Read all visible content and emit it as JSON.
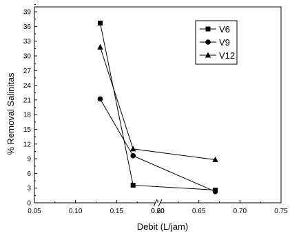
{
  "chart_data": {
    "type": "line",
    "xlabel": "Debit (L/jam)",
    "ylabel": "% Removal Salinitas",
    "ylim": [
      0,
      40
    ],
    "axis_break": {
      "from": 0.2,
      "to": 0.6
    },
    "x_ticks": [
      "0.05",
      "0.10",
      "0.15",
      "0.20",
      "0.60",
      "0.65",
      "0.70",
      "0.75"
    ],
    "y_ticks": [
      "0",
      "3",
      "6",
      "9",
      "12",
      "15",
      "18",
      "21",
      "24",
      "27",
      "30",
      "33",
      "36",
      "39"
    ],
    "legend_position": "top-right",
    "series": [
      {
        "name": "V6",
        "marker": "square",
        "x": [
          0.13,
          0.17,
          0.67
        ],
        "y": [
          36.7,
          3.6,
          2.6
        ]
      },
      {
        "name": "V9",
        "marker": "circle",
        "x": [
          0.13,
          0.17,
          0.67
        ],
        "y": [
          21.2,
          9.6,
          2.3
        ]
      },
      {
        "name": "V12",
        "marker": "triangle",
        "x": [
          0.13,
          0.17,
          0.67
        ],
        "y": [
          31.8,
          11.0,
          8.8
        ]
      }
    ]
  }
}
